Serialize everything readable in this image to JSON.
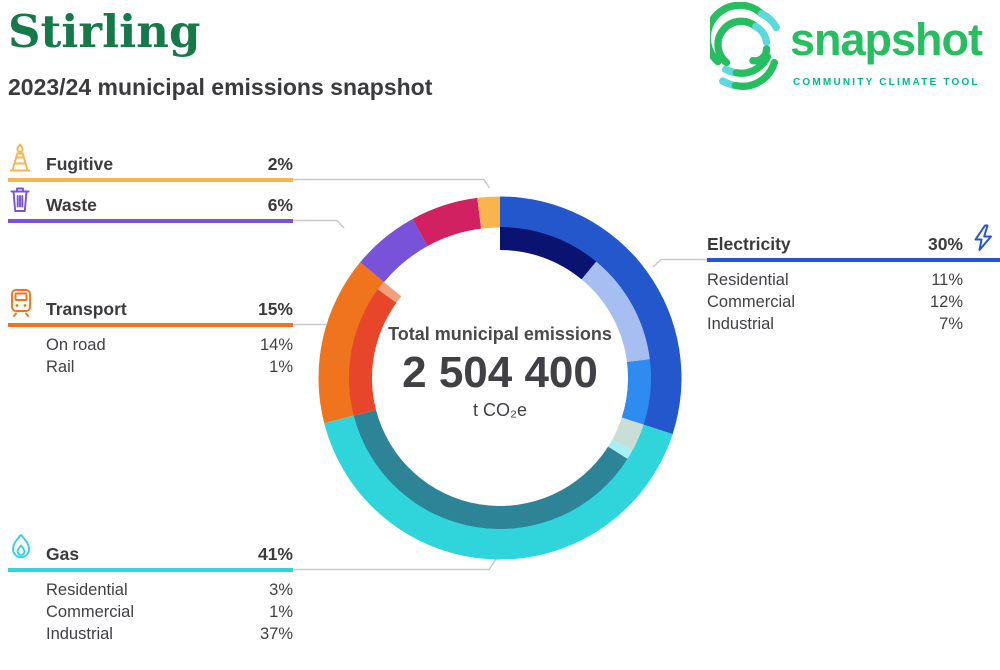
{
  "header": {
    "title": "Stirling",
    "subtitle": "2023/24 municipal emissions snapshot",
    "title_color": "#15794A",
    "subtitle_color": "#3B3B3E"
  },
  "logo": {
    "wordmark": "snapshot",
    "tagline": "COMMUNITY CLIMATE TOOL",
    "wordmark_color": "#27BE62",
    "tagline_color": "#00BA8E",
    "mark_green": "#27BE62",
    "mark_teal": "#5CD9DB"
  },
  "chart_data": {
    "type": "donut",
    "title": "Total municipal emissions",
    "total_value": "2 504 400",
    "unit": "t CO₂e",
    "start_angle_deg": 0,
    "direction": "clockwise",
    "legend_position": "callout-labels-around-donut",
    "rings": {
      "outer": [
        150.5,
        181.5
      ],
      "inner": [
        128,
        151
      ]
    },
    "segments": [
      {
        "label": "Electricity",
        "pct": 30,
        "pct_label": "30%",
        "color": "#2456CC",
        "icon": "lightning-bolt",
        "side": "right",
        "sub": [
          {
            "label": "Residential",
            "pct": 11,
            "pct_label": "11%",
            "color": "#0A1370"
          },
          {
            "label": "Commercial",
            "pct": 12,
            "pct_label": "12%",
            "color": "#A7BEF2"
          },
          {
            "label": "Industrial",
            "pct": 7,
            "pct_label": "7%",
            "color": "#2E8CF0"
          }
        ]
      },
      {
        "label": "Gas",
        "pct": 41,
        "pct_label": "41%",
        "color": "#2FD5DB",
        "icon": "flame",
        "side": "left",
        "sub": [
          {
            "label": "Residential",
            "pct": 3,
            "pct_label": "3%",
            "color": "#C9DED7"
          },
          {
            "label": "Commercial",
            "pct": 1,
            "pct_label": "1%",
            "color": "#A5EFF5"
          },
          {
            "label": "Industrial",
            "pct": 37,
            "pct_label": "37%",
            "color": "#2C8496"
          }
        ]
      },
      {
        "label": "Transport",
        "pct": 15,
        "pct_label": "15%",
        "color": "#F0731E",
        "icon": "train",
        "side": "left",
        "sub": [
          {
            "label": "On road",
            "pct": 14,
            "pct_label": "14%",
            "color": "#E8462B"
          },
          {
            "label": "Rail",
            "pct": 1,
            "pct_label": "1%",
            "color": "#F2A07B"
          }
        ]
      },
      {
        "label": "Waste",
        "pct": 6,
        "pct_label": "6%",
        "color": "#7852D8",
        "icon": "trash-can",
        "side": "left",
        "sub": []
      },
      {
        "label": "",
        "pct": 6,
        "pct_label": "",
        "color": "#D22161",
        "icon": "",
        "side": "none",
        "sub": []
      },
      {
        "label": "Fugitive",
        "pct": 2,
        "pct_label": "2%",
        "color": "#F8B44D",
        "icon": "flare-stack",
        "side": "left",
        "sub": []
      }
    ]
  }
}
